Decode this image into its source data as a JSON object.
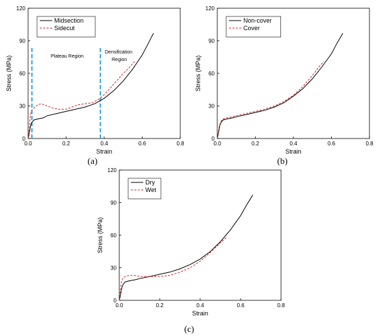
{
  "chart_data": [
    {
      "type": "line",
      "panel_label": "(a)",
      "xlabel": "Strain",
      "ylabel": "Stress (MPa)",
      "xlim": [
        0,
        0.8
      ],
      "ylim": [
        0,
        120
      ],
      "xticks": [
        "0.0",
        "0.2",
        "0.4",
        "0.6",
        "0.8"
      ],
      "yticks": [
        "0",
        "30",
        "60",
        "90",
        "120"
      ],
      "grid": false,
      "legend_position": "top-left",
      "annotations": [
        {
          "text": "Plateau Region"
        },
        {
          "text": "Densification Region",
          "lines": [
            "Densification",
            "Region"
          ]
        }
      ],
      "vlines": [
        0.02,
        0.38
      ],
      "vline_color": "#1f9bd7",
      "series": [
        {
          "name": "Midsection",
          "color": "#000000",
          "dash": "solid",
          "x": [
            0,
            0.005,
            0.01,
            0.015,
            0.02,
            0.03,
            0.05,
            0.08,
            0.1,
            0.15,
            0.2,
            0.25,
            0.3,
            0.35,
            0.4,
            0.45,
            0.5,
            0.55,
            0.6,
            0.63,
            0.65,
            0.66
          ],
          "y": [
            0,
            4,
            9,
            13,
            15,
            17,
            18,
            19,
            21,
            23,
            25,
            27,
            29,
            32,
            37,
            44,
            53,
            64,
            77,
            87,
            94,
            97
          ]
        },
        {
          "name": "Sidecut",
          "color": "#d62728",
          "dash": "dashed",
          "x": [
            0,
            0.005,
            0.01,
            0.015,
            0.02,
            0.03,
            0.05,
            0.07,
            0.1,
            0.13,
            0.16,
            0.2,
            0.23,
            0.26,
            0.3,
            0.34,
            0.38,
            0.42,
            0.46,
            0.5,
            0.53,
            0.55,
            0.56
          ],
          "y": [
            0,
            8,
            18,
            24,
            26,
            28,
            31,
            32,
            30,
            28,
            27,
            27,
            29,
            31,
            32,
            33,
            37,
            44,
            52,
            60,
            65,
            69,
            71
          ]
        }
      ]
    },
    {
      "type": "line",
      "panel_label": "(b)",
      "xlabel": "Strain",
      "ylabel": "Stress (MPa)",
      "xlim": [
        0,
        0.8
      ],
      "ylim": [
        0,
        120
      ],
      "xticks": [
        "0.0",
        "0.2",
        "0.4",
        "0.6",
        "0.8"
      ],
      "yticks": [
        "0",
        "30",
        "60",
        "90",
        "120"
      ],
      "grid": false,
      "legend_position": "top-left",
      "series": [
        {
          "name": "Non-cover",
          "color": "#000000",
          "dash": "solid",
          "x": [
            0,
            0.005,
            0.01,
            0.015,
            0.02,
            0.03,
            0.05,
            0.08,
            0.1,
            0.15,
            0.2,
            0.25,
            0.3,
            0.35,
            0.4,
            0.45,
            0.5,
            0.55,
            0.6,
            0.63,
            0.65,
            0.66
          ],
          "y": [
            0,
            4,
            9,
            13,
            15,
            17,
            18,
            19,
            20,
            22,
            24,
            26,
            29,
            33,
            39,
            46,
            55,
            66,
            78,
            88,
            94,
            97
          ]
        },
        {
          "name": "Cover",
          "color": "#d62728",
          "dash": "dashed",
          "x": [
            0,
            0.005,
            0.01,
            0.015,
            0.02,
            0.03,
            0.05,
            0.08,
            0.1,
            0.15,
            0.2,
            0.25,
            0.3,
            0.35,
            0.4,
            0.45,
            0.5,
            0.53,
            0.55,
            0.56
          ],
          "y": [
            0,
            6,
            11,
            14,
            16,
            18,
            19,
            20,
            21,
            23,
            25,
            27,
            30,
            34,
            40,
            48,
            58,
            65,
            69,
            71
          ]
        }
      ]
    },
    {
      "type": "line",
      "panel_label": "(c)",
      "xlabel": "Strain",
      "ylabel": "Stress (MPa)",
      "xlim": [
        0,
        0.8
      ],
      "ylim": [
        0,
        120
      ],
      "xticks": [
        "0.0",
        "0.2",
        "0.4",
        "0.6",
        "0.8"
      ],
      "yticks": [
        "0",
        "30",
        "60",
        "90",
        "120"
      ],
      "grid": false,
      "legend_position": "top-left",
      "series": [
        {
          "name": "Dry",
          "color": "#000000",
          "dash": "solid",
          "x": [
            0,
            0.005,
            0.01,
            0.015,
            0.02,
            0.03,
            0.05,
            0.08,
            0.1,
            0.15,
            0.2,
            0.25,
            0.3,
            0.35,
            0.4,
            0.45,
            0.5,
            0.55,
            0.6,
            0.63,
            0.65,
            0.66
          ],
          "y": [
            0,
            4,
            9,
            13,
            15,
            17,
            18,
            19,
            20,
            22,
            24,
            26,
            29,
            33,
            38,
            45,
            54,
            65,
            78,
            88,
            94,
            97
          ]
        },
        {
          "name": "Wet",
          "color": "#d62728",
          "dash": "dashed",
          "x": [
            0,
            0.005,
            0.01,
            0.015,
            0.02,
            0.03,
            0.05,
            0.08,
            0.1,
            0.13,
            0.16,
            0.2,
            0.25,
            0.3,
            0.35,
            0.4,
            0.45,
            0.5,
            0.53
          ],
          "y": [
            0,
            9,
            16,
            19,
            21,
            22,
            23,
            23,
            22,
            22,
            22,
            22,
            23,
            26,
            30,
            36,
            44,
            53,
            58
          ]
        }
      ]
    }
  ]
}
